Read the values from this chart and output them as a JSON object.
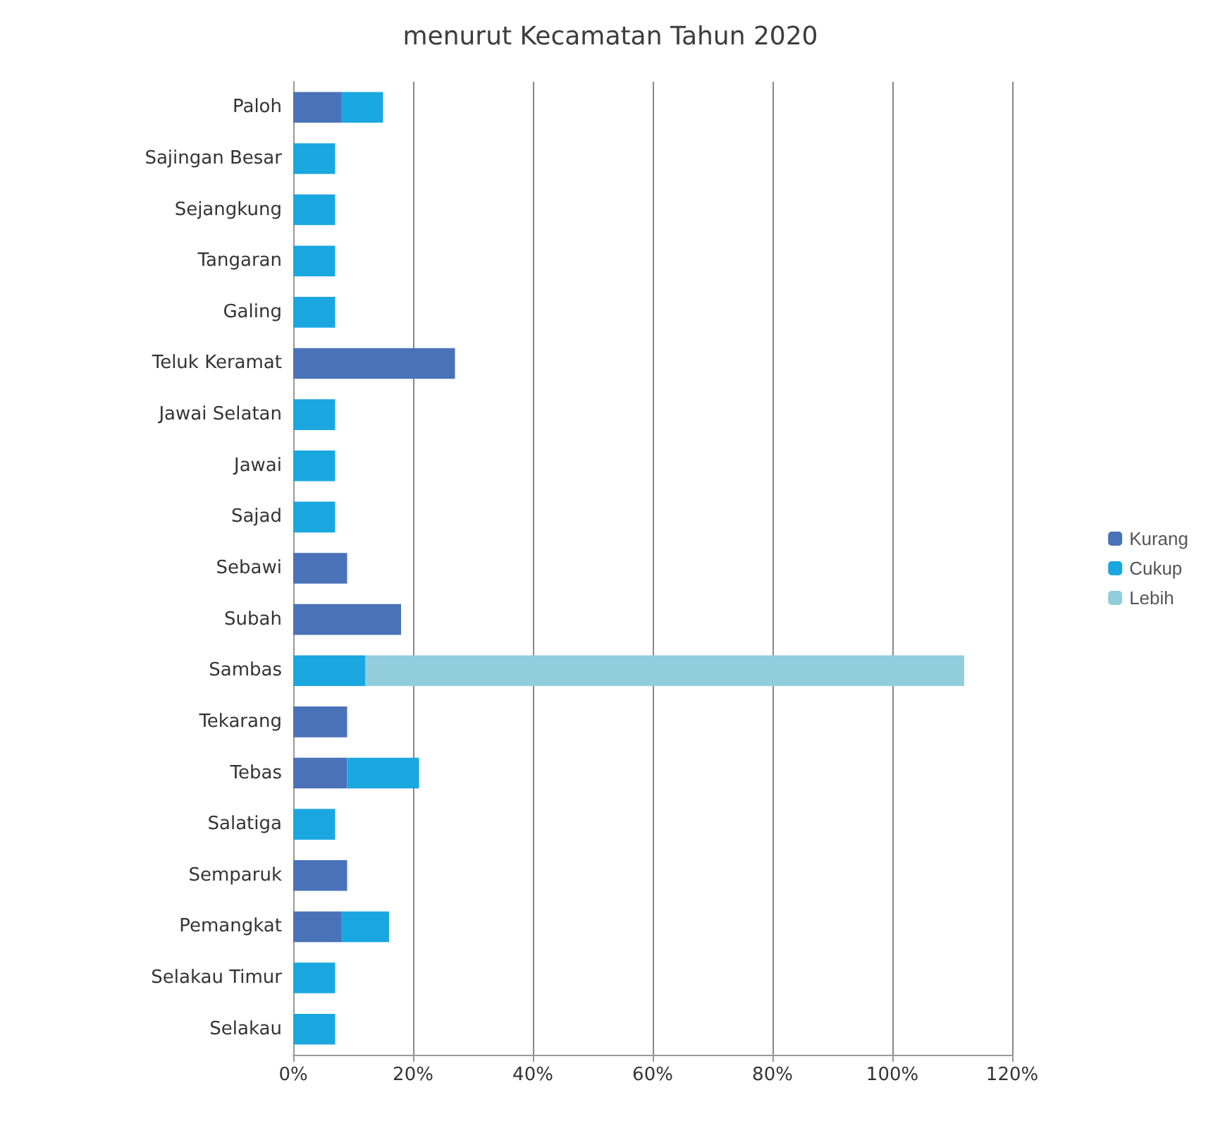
{
  "chart_data": {
    "type": "bar",
    "orientation": "horizontal",
    "stacked": true,
    "title": "menurut Kecamatan Tahun 2020",
    "categories": [
      "Paloh",
      "Sajingan Besar",
      "Sejangkung",
      "Tangaran",
      "Galing",
      "Teluk Keramat",
      "Jawai Selatan",
      "Jawai",
      "Sajad",
      "Sebawi",
      "Subah",
      "Sambas",
      "Tekarang",
      "Tebas",
      "Salatiga",
      "Semparuk",
      "Pemangkat",
      "Selakau Timur",
      "Selakau"
    ],
    "series": [
      {
        "name": "Kurang",
        "color": "#4a72b8",
        "values": [
          8,
          null,
          null,
          null,
          null,
          27,
          null,
          null,
          null,
          9,
          18,
          null,
          9,
          9,
          null,
          9,
          8,
          null,
          null
        ]
      },
      {
        "name": "Cukup",
        "color": "#1aa7e0",
        "values": [
          7,
          7,
          7,
          7,
          7,
          null,
          7,
          7,
          7,
          null,
          null,
          12,
          null,
          12,
          7,
          null,
          8,
          7,
          7
        ]
      },
      {
        "name": "Lebih",
        "color": "#92cddc",
        "values": [
          null,
          null,
          null,
          null,
          null,
          null,
          null,
          null,
          null,
          null,
          null,
          100,
          null,
          null,
          null,
          null,
          null,
          null,
          null
        ]
      }
    ],
    "xlim": [
      0,
      120
    ],
    "xticks": [
      {
        "value": 0,
        "label": "0%"
      },
      {
        "value": 20,
        "label": "20%"
      },
      {
        "value": 40,
        "label": "40%"
      },
      {
        "value": 60,
        "label": "60%"
      },
      {
        "value": 80,
        "label": "80%"
      },
      {
        "value": 100,
        "label": "100%"
      },
      {
        "value": 120,
        "label": "120%"
      }
    ],
    "grid": "x",
    "legend": "right"
  }
}
